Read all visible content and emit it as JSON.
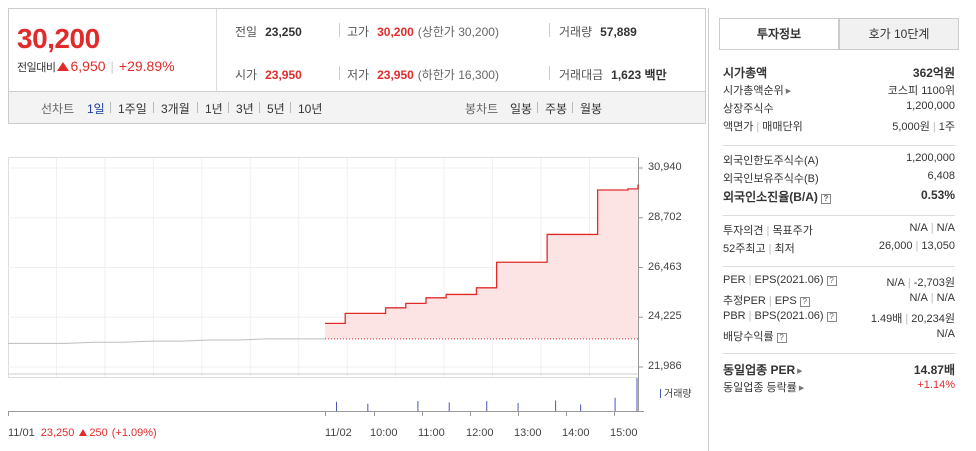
{
  "quote": {
    "price": "30,200",
    "change_label": "전일대비",
    "change": "6,950",
    "change_pct": "+29.89%"
  },
  "stats": {
    "prev_close_label": "전일",
    "prev_close": "23,250",
    "high_label": "고가",
    "high": "30,200",
    "upper_limit_note": "(상한가 30,200)",
    "volume_label": "거래량",
    "volume": "57,889",
    "open_label": "시가",
    "open": "23,950",
    "low_label": "저가",
    "low": "23,950",
    "lower_limit_note": "(하한가 16,300)",
    "amount_label": "거래대금",
    "amount": "1,623 백만"
  },
  "period_bar": {
    "line_label": "선차트",
    "line_options": [
      "1일",
      "1주일",
      "3개월",
      "1년",
      "3년",
      "5년",
      "10년"
    ],
    "candle_label": "봉차트",
    "candle_options": [
      "일봉",
      "주봉",
      "월봉"
    ]
  },
  "chart_data": {
    "type": "line",
    "y_ticks": [
      "30,940",
      "28,702",
      "26,463",
      "24,225",
      "21,986"
    ],
    "ylim": [
      21986,
      30940
    ],
    "x_ticks": [
      "11/01",
      "11/02",
      "10:00",
      "11:00",
      "12:00",
      "13:00",
      "14:00",
      "15:00"
    ],
    "volume_label": "거래량",
    "base_price": 23250,
    "prev_day_series": {
      "values": [
        23050,
        23050,
        23050,
        23100,
        23100,
        23150,
        23150,
        23200,
        23200,
        23250,
        23250,
        23250
      ]
    },
    "today_series": {
      "values": [
        23950,
        23950,
        24400,
        24400,
        24400,
        24400,
        24650,
        24650,
        24850,
        24850,
        25100,
        25100,
        25250,
        25250,
        25250,
        25550,
        25550,
        26700,
        26700,
        26700,
        26700,
        26700,
        27950,
        27950,
        27950,
        27950,
        27950,
        29950,
        29950,
        29950,
        30000,
        30200
      ]
    },
    "volume_bars": [
      {
        "x_frac": 0.04,
        "v": 0.28
      },
      {
        "x_frac": 0.14,
        "v": 0.22
      },
      {
        "x_frac": 0.3,
        "v": 0.3
      },
      {
        "x_frac": 0.4,
        "v": 0.26
      },
      {
        "x_frac": 0.52,
        "v": 0.3
      },
      {
        "x_frac": 0.62,
        "v": 0.24
      },
      {
        "x_frac": 0.74,
        "v": 0.32
      },
      {
        "x_frac": 0.82,
        "v": 0.2
      },
      {
        "x_frac": 0.93,
        "v": 0.4
      },
      {
        "x_frac": 1.0,
        "v": 1.0
      }
    ],
    "footer": {
      "date": "11/01",
      "price": "23,250",
      "change": "250",
      "change_pct": "(+1.09%)"
    }
  },
  "colors": {
    "up": "#e12b2b",
    "fill": "#fde4e4",
    "prev_line": "#bdbdbd",
    "volume": "#4a55b8"
  },
  "tabs": [
    "투자정보",
    "호가 10단계"
  ],
  "info": {
    "market_cap_label": "시가총액",
    "market_cap": "362억원",
    "rank_label": "시가총액순위",
    "rank": "코스피 1100위",
    "shares_label": "상장주식수",
    "shares": "1,200,000",
    "par_label": "액면가",
    "unit_label": "매매단위",
    "par": "5,000원",
    "unit": "1주",
    "foreign_limit_label": "외국인한도주식수(A)",
    "foreign_limit": "1,200,000",
    "foreign_hold_label": "외국인보유주식수(B)",
    "foreign_hold": "6,408",
    "foreign_ratio_label": "외국인소진율(B/A)",
    "foreign_ratio": "0.53%",
    "opinion_label": "투자의견",
    "target_label": "목표주가",
    "opinion": "N/A",
    "target": "N/A",
    "high52_label": "52주최고",
    "low52_label": "최저",
    "high52": "26,000",
    "low52": "13,050",
    "per_label": "PER",
    "eps_label": "EPS",
    "eps_period": "(2021.06)",
    "per": "N/A",
    "eps": "-2,703원",
    "est_per_label": "추정PER",
    "est_eps_label": "EPS",
    "est_per": "N/A",
    "est_eps": "N/A",
    "pbr_label": "PBR",
    "bps_label": "BPS",
    "bps_period": "(2021.06)",
    "pbr": "1.49배",
    "bps": "20,234원",
    "div_label": "배당수익률",
    "div": "N/A",
    "sector_per_label": "동일업종 PER",
    "sector_per": "14.87배",
    "sector_chg_label": "동일업종 등락률",
    "sector_chg": "+1.14%"
  }
}
